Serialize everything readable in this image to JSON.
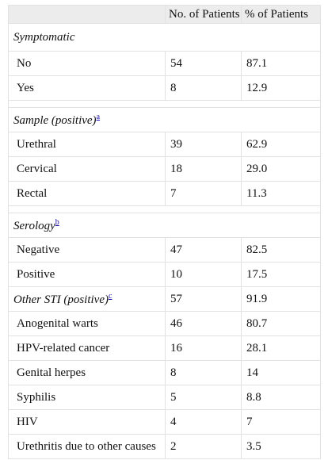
{
  "header": {
    "col1": "",
    "col2": "No. of Patients",
    "col3": "% of Patients"
  },
  "sections": {
    "symptomatic": {
      "title": "Symptomatic",
      "rows": [
        {
          "label": "No",
          "count": "54",
          "pct": "87.1"
        },
        {
          "label": "Yes",
          "count": "8",
          "pct": "12.9"
        }
      ]
    },
    "sample": {
      "title": "Sample (positive)",
      "note": "a",
      "rows": [
        {
          "label": "Urethral",
          "count": "39",
          "pct": "62.9"
        },
        {
          "label": "Cervical",
          "count": "18",
          "pct": "29.0"
        },
        {
          "label": "Rectal",
          "count": "7",
          "pct": "11.3"
        }
      ]
    },
    "serology": {
      "title": "Serology",
      "note": "b",
      "rows": [
        {
          "label": "Negative",
          "count": "47",
          "pct": "82.5"
        },
        {
          "label": "Positive",
          "count": "10",
          "pct": "17.5"
        }
      ]
    },
    "other_sti": {
      "title": "Other STI (positive)",
      "note": "c",
      "count": "57",
      "pct": "91.9",
      "rows": [
        {
          "label": "Anogenital warts",
          "count": "46",
          "pct": "80.7"
        },
        {
          "label": "HPV-related cancer",
          "count": "16",
          "pct": "28.1"
        },
        {
          "label": "Genital herpes",
          "count": "8",
          "pct": "14"
        },
        {
          "label": "Syphilis",
          "count": "5",
          "pct": "8.8"
        },
        {
          "label": "HIV",
          "count": "4",
          "pct": "7"
        },
        {
          "label": "Urethritis due to other causes",
          "count": "2",
          "pct": "3.5"
        }
      ]
    }
  }
}
